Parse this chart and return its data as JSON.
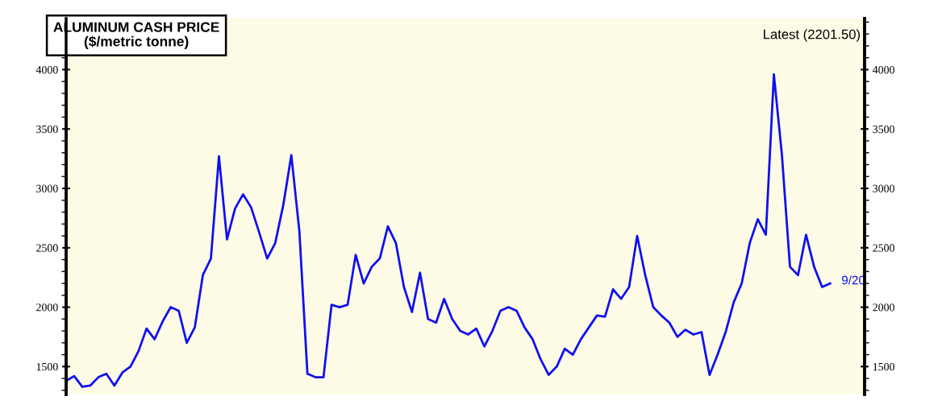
{
  "chart_data": {
    "type": "line",
    "title": "ALUMINUM CASH PRICE",
    "subtitle": "($/metric tonne)",
    "annotations": [
      "Latest (2201.50)",
      "9/20"
    ],
    "categories": [
      null,
      null,
      null,
      null,
      null,
      null,
      null,
      null,
      null,
      null,
      null,
      null,
      null,
      null,
      null,
      null,
      null,
      null,
      null,
      null,
      null,
      null,
      null,
      null,
      null,
      null,
      null,
      null,
      null,
      null,
      null,
      null,
      null,
      null,
      null,
      null,
      null,
      null,
      null,
      null,
      null,
      null,
      null,
      null,
      null,
      null,
      null,
      null,
      null,
      null,
      null,
      null,
      null,
      null,
      null,
      null,
      null,
      null,
      null,
      null,
      null,
      null,
      null,
      null,
      null,
      null,
      null,
      null,
      null,
      null,
      null,
      null,
      null,
      null,
      null,
      null,
      null,
      null,
      null,
      null,
      null,
      null,
      null,
      null,
      null,
      null,
      null,
      null,
      null,
      null,
      null,
      null,
      null,
      null,
      null,
      null
    ],
    "series": [
      {
        "color": "#1010f0",
        "values": [
          1380,
          1420,
          1330,
          1340,
          1410,
          1440,
          1340,
          1450,
          1500,
          1630,
          1820,
          1730,
          1880,
          2000,
          1970,
          1700,
          1830,
          2270,
          2410,
          3270,
          2570,
          2830,
          2950,
          2840,
          2630,
          2410,
          2540,
          2860,
          3280,
          2640,
          1440,
          1410,
          1410,
          2020,
          2000,
          2020,
          2440,
          2200,
          2340,
          2410,
          2680,
          2540,
          2170,
          1960,
          2290,
          1900,
          1870,
          2070,
          1900,
          1800,
          1770,
          1820,
          1670,
          1800,
          1970,
          2000,
          1970,
          1830,
          1730,
          1560,
          1430,
          1500,
          1650,
          1600,
          1730,
          1830,
          1930,
          1920,
          2150,
          2070,
          2170,
          2600,
          2270,
          2000,
          1930,
          1870,
          1750,
          1810,
          1770,
          1790,
          1430,
          1600,
          1790,
          2040,
          2200,
          2540,
          2740,
          2610,
          3960,
          3280,
          2340,
          2270,
          2610,
          2340,
          2170,
          2200
        ]
      }
    ],
    "ylim": [
      1265,
      4430
    ],
    "yticks": [
      1500,
      2000,
      2500,
      3000,
      3500,
      4000
    ],
    "y2lim": [
      1265,
      4430
    ],
    "y2ticks": [
      1500,
      2000,
      2500,
      3000,
      3500,
      4000
    ],
    "grid": false,
    "legend": false,
    "marker": "none",
    "line_style": "solid"
  }
}
